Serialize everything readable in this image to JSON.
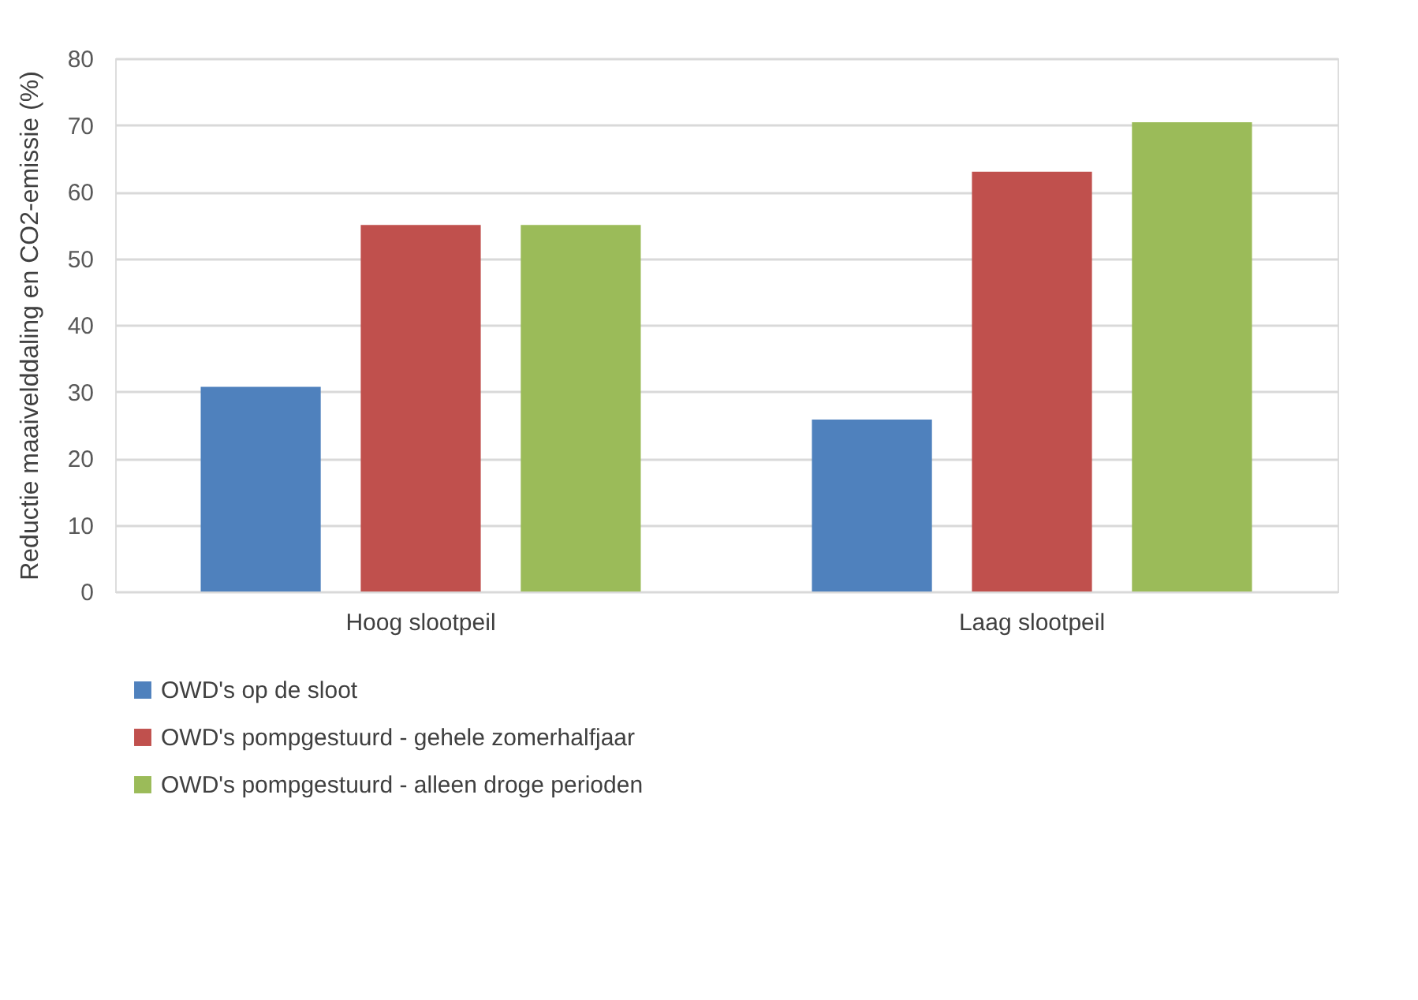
{
  "chart_data": {
    "type": "bar",
    "ylabel": "Reductie maaivelddaling en CO2-emissie (%)",
    "categories": [
      "Hoog slootpeil",
      "Laag slootpeil"
    ],
    "series": [
      {
        "name": "OWD's op de sloot",
        "color": "#4f81bd",
        "values": [
          30.7,
          25.8
        ]
      },
      {
        "name": "OWD's pompgestuurd - gehele zomerhalfjaar",
        "color": "#c0504d",
        "values": [
          55,
          63
        ]
      },
      {
        "name": "OWD's pompgestuurd - alleen droge perioden",
        "color": "#9bbb59",
        "values": [
          55,
          70.4
        ]
      }
    ],
    "ylim": [
      0,
      80
    ],
    "yticks": [
      0,
      10,
      20,
      30,
      40,
      50,
      60,
      70,
      80
    ],
    "grid": "y",
    "legend": "bottom"
  }
}
